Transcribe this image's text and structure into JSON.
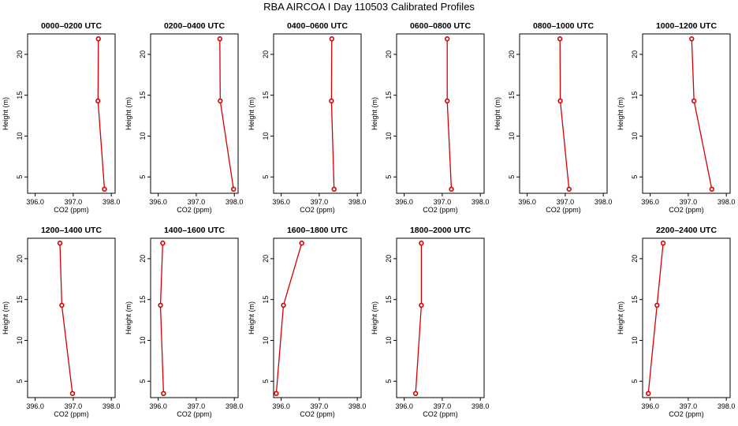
{
  "title": "RBA AIRCOA I  Day 110503  Calibrated Profiles",
  "colors": {
    "series": "#d40000",
    "axis": "#000000",
    "background": "#ffffff"
  },
  "chart_data": [
    {
      "type": "line",
      "title": "0000–0200 UTC",
      "xlabel": "CO2 (ppm)",
      "ylabel": "Height (m)",
      "xlim": [
        395.8,
        398.1
      ],
      "ylim": [
        3,
        22.5
      ],
      "xticks": [
        "396.0",
        "397.0",
        "398.0"
      ],
      "yticks": [
        "5",
        "10",
        "15",
        "20"
      ],
      "x": [
        397.82,
        397.65,
        397.66
      ],
      "y": [
        3.5,
        14.3,
        21.9
      ]
    },
    {
      "type": "line",
      "title": "0200–0400 UTC",
      "xlabel": "CO2 (ppm)",
      "ylabel": "Height (m)",
      "xlim": [
        395.8,
        398.1
      ],
      "ylim": [
        3,
        22.5
      ],
      "xticks": [
        "396.0",
        "397.0",
        "398.0"
      ],
      "yticks": [
        "5",
        "10",
        "15",
        "20"
      ],
      "x": [
        397.98,
        397.63,
        397.62
      ],
      "y": [
        3.5,
        14.3,
        21.9
      ]
    },
    {
      "type": "line",
      "title": "0400–0600 UTC",
      "xlabel": "CO2 (ppm)",
      "ylabel": "Height (m)",
      "xlim": [
        395.8,
        398.1
      ],
      "ylim": [
        3,
        22.5
      ],
      "xticks": [
        "396.0",
        "397.0",
        "398.0"
      ],
      "yticks": [
        "5",
        "10",
        "15",
        "20"
      ],
      "x": [
        397.39,
        397.32,
        397.33
      ],
      "y": [
        3.5,
        14.3,
        21.9
      ]
    },
    {
      "type": "line",
      "title": "0600–0800 UTC",
      "xlabel": "CO2 (ppm)",
      "ylabel": "Height (m)",
      "xlim": [
        395.8,
        398.1
      ],
      "ylim": [
        3,
        22.5
      ],
      "xticks": [
        "396.0",
        "397.0",
        "398.0"
      ],
      "yticks": [
        "5",
        "10",
        "15",
        "20"
      ],
      "x": [
        397.24,
        397.13,
        397.13
      ],
      "y": [
        3.5,
        14.3,
        21.9
      ]
    },
    {
      "type": "line",
      "title": "0800–1000 UTC",
      "xlabel": "CO2 (ppm)",
      "ylabel": "Height (m)",
      "xlim": [
        395.8,
        398.1
      ],
      "ylim": [
        3,
        22.5
      ],
      "xticks": [
        "396.0",
        "397.0",
        "398.0"
      ],
      "yticks": [
        "5",
        "10",
        "15",
        "20"
      ],
      "x": [
        397.1,
        396.87,
        396.86
      ],
      "y": [
        3.5,
        14.3,
        21.9
      ]
    },
    {
      "type": "line",
      "title": "1000–1200 UTC",
      "xlabel": "CO2 (ppm)",
      "ylabel": "Height (m)",
      "xlim": [
        395.8,
        398.1
      ],
      "ylim": [
        3,
        22.5
      ],
      "xticks": [
        "396.0",
        "397.0",
        "398.0"
      ],
      "yticks": [
        "5",
        "10",
        "15",
        "20"
      ],
      "x": [
        397.62,
        397.15,
        397.09
      ],
      "y": [
        3.5,
        14.3,
        21.9
      ]
    },
    {
      "type": "line",
      "title": "1200–1400 UTC",
      "xlabel": "CO2 (ppm)",
      "ylabel": "Height (m)",
      "xlim": [
        395.8,
        398.1
      ],
      "ylim": [
        3,
        22.5
      ],
      "xticks": [
        "396.0",
        "397.0",
        "398.0"
      ],
      "yticks": [
        "5",
        "10",
        "15",
        "20"
      ],
      "x": [
        396.98,
        396.7,
        396.65
      ],
      "y": [
        3.5,
        14.3,
        21.9
      ]
    },
    {
      "type": "line",
      "title": "1400–1600 UTC",
      "xlabel": "CO2 (ppm)",
      "ylabel": "Height (m)",
      "xlim": [
        395.8,
        398.1
      ],
      "ylim": [
        3,
        22.5
      ],
      "xticks": [
        "396.0",
        "397.0",
        "398.0"
      ],
      "yticks": [
        "5",
        "10",
        "15",
        "20"
      ],
      "x": [
        396.14,
        396.06,
        396.12
      ],
      "y": [
        3.5,
        14.3,
        21.9
      ]
    },
    {
      "type": "line",
      "title": "1600–1800 UTC",
      "xlabel": "CO2 (ppm)",
      "ylabel": "Height (m)",
      "xlim": [
        395.8,
        398.1
      ],
      "ylim": [
        3,
        22.5
      ],
      "xticks": [
        "396.0",
        "397.0",
        "398.0"
      ],
      "yticks": [
        "5",
        "10",
        "15",
        "20"
      ],
      "x": [
        395.87,
        396.06,
        396.54
      ],
      "y": [
        3.5,
        14.3,
        21.9
      ]
    },
    {
      "type": "line",
      "title": "1800–2000 UTC",
      "xlabel": "CO2 (ppm)",
      "ylabel": "Height (m)",
      "xlim": [
        395.8,
        398.1
      ],
      "ylim": [
        3,
        22.5
      ],
      "xticks": [
        "396.0",
        "397.0",
        "398.0"
      ],
      "yticks": [
        "5",
        "10",
        "15",
        "20"
      ],
      "x": [
        396.3,
        396.45,
        396.45
      ],
      "y": [
        3.5,
        14.3,
        21.9
      ]
    },
    {
      "type": "line",
      "title": "2200–2400 UTC",
      "xlabel": "CO2 (ppm)",
      "ylabel": "Height (m)",
      "xlim": [
        395.8,
        398.1
      ],
      "ylim": [
        3,
        22.5
      ],
      "xticks": [
        "396.0",
        "397.0",
        "398.0"
      ],
      "yticks": [
        "5",
        "10",
        "15",
        "20"
      ],
      "x": [
        395.95,
        396.18,
        396.34
      ],
      "y": [
        3.5,
        14.3,
        21.9
      ]
    }
  ]
}
